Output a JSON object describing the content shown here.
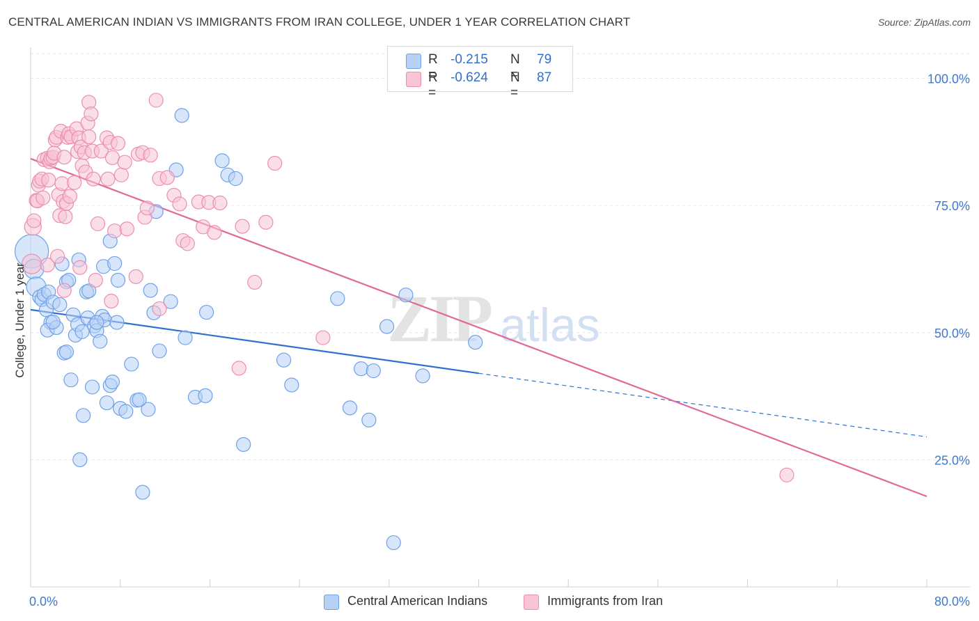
{
  "title": "CENTRAL AMERICAN INDIAN VS IMMIGRANTS FROM IRAN COLLEGE, UNDER 1 YEAR CORRELATION CHART",
  "source": "Source: ZipAtlas.com",
  "watermark": {
    "zip": "ZIP",
    "atlas": "atlas"
  },
  "legend": {
    "r_label": "R =",
    "n_label": "N =",
    "series": [
      {
        "r": "-0.215",
        "n": "79"
      },
      {
        "r": "-0.624",
        "n": "87"
      }
    ]
  },
  "chart_data": {
    "type": "scatter",
    "title": "CENTRAL AMERICAN INDIAN VS IMMIGRANTS FROM IRAN COLLEGE, UNDER 1 YEAR CORRELATION CHART",
    "xlabel": "",
    "ylabel": "College, Under 1 year",
    "xlim": [
      0,
      80
    ],
    "ylim": [
      0,
      105
    ],
    "x_tick_labels": [
      "0.0%",
      "80.0%"
    ],
    "y_ticks": [
      25,
      50,
      75,
      100
    ],
    "y_tick_labels": [
      "25.0%",
      "50.0%",
      "75.0%",
      "100.0%"
    ],
    "grid": true,
    "legend_position": "top-center",
    "series": [
      {
        "name": "Central American Indians",
        "color": "#6fa0e8",
        "fill": "#b7d1f5",
        "line_color": "#2f6fd0",
        "r": -0.215,
        "n": 79,
        "trend": {
          "x0": 0,
          "y0": 54.5,
          "x1": 40,
          "y1": 42.0,
          "dashed_to_x": 80,
          "dashed_to_y": 29.5
        },
        "points": [
          [
            0.1,
            66,
            24
          ],
          [
            0.3,
            62.5,
            14
          ],
          [
            0.5,
            59,
            14
          ],
          [
            0.8,
            57,
            10
          ],
          [
            1.0,
            56.5,
            10
          ],
          [
            1.2,
            57.5,
            10
          ],
          [
            1.4,
            54.5,
            10
          ],
          [
            1.6,
            58,
            10
          ],
          [
            1.8,
            52,
            10
          ],
          [
            2.0,
            56,
            10
          ],
          [
            1.5,
            50.5,
            10
          ],
          [
            2.3,
            51,
            10
          ],
          [
            2.6,
            55.5,
            10
          ],
          [
            2.8,
            63.5,
            10
          ],
          [
            3.0,
            46,
            10
          ],
          [
            3.2,
            60,
            10
          ],
          [
            3.4,
            60.3,
            10
          ],
          [
            3.2,
            46.2,
            10
          ],
          [
            3.6,
            40.7,
            10
          ],
          [
            3.8,
            53.5,
            10
          ],
          [
            4.0,
            49.5,
            10
          ],
          [
            4.2,
            51.6,
            10
          ],
          [
            4.3,
            64.3,
            10
          ],
          [
            4.6,
            50.2,
            10
          ],
          [
            5.0,
            58,
            10
          ],
          [
            5.1,
            52.9,
            10
          ],
          [
            5.2,
            58.2,
            10
          ],
          [
            5.5,
            39.3,
            10
          ],
          [
            5.7,
            51.3,
            10
          ],
          [
            5.9,
            50.4,
            10
          ],
          [
            6.2,
            48.3,
            10
          ],
          [
            6.4,
            53.2,
            10
          ],
          [
            6.5,
            63,
            10
          ],
          [
            6.6,
            52.5,
            10
          ],
          [
            6.8,
            36.2,
            10
          ],
          [
            7.1,
            39.6,
            10
          ],
          [
            7.3,
            40.3,
            10
          ],
          [
            7.5,
            63.6,
            10
          ],
          [
            7.7,
            52,
            10
          ],
          [
            7.8,
            60.3,
            10
          ],
          [
            7.1,
            68,
            10
          ],
          [
            8.0,
            35.1,
            10
          ],
          [
            8.5,
            34.5,
            10
          ],
          [
            9.0,
            43.8,
            10
          ],
          [
            9.5,
            36.7,
            10
          ],
          [
            10.0,
            18.6,
            10
          ],
          [
            10.5,
            34.9,
            10
          ],
          [
            10.7,
            58.3,
            10
          ],
          [
            11.0,
            53.9,
            10
          ],
          [
            11.5,
            46.4,
            10
          ],
          [
            12.5,
            56.1,
            10
          ],
          [
            13.0,
            82,
            10
          ],
          [
            13.5,
            92.7,
            10
          ],
          [
            13.8,
            49,
            10
          ],
          [
            14.7,
            37.3,
            10
          ],
          [
            15.6,
            37.6,
            10
          ],
          [
            15.7,
            54,
            10
          ],
          [
            17.1,
            83.8,
            10
          ],
          [
            17.6,
            81,
            10
          ],
          [
            18.3,
            80.3,
            10
          ],
          [
            19.0,
            28,
            10
          ],
          [
            22.6,
            44.6,
            10
          ],
          [
            23.3,
            39.7,
            10
          ],
          [
            27.4,
            56.7,
            10
          ],
          [
            28.5,
            35.2,
            10
          ],
          [
            29.5,
            42.9,
            10
          ],
          [
            30.2,
            32.8,
            10
          ],
          [
            30.6,
            42.5,
            10
          ],
          [
            31.8,
            51.2,
            10
          ],
          [
            33.5,
            57.4,
            10
          ],
          [
            35.0,
            41.5,
            10
          ],
          [
            39.7,
            48.1,
            10
          ],
          [
            32.4,
            8.7,
            10
          ],
          [
            4.4,
            25,
            10
          ],
          [
            5.9,
            52,
            10
          ],
          [
            11.2,
            73.8,
            10
          ],
          [
            2.0,
            52.1,
            10
          ],
          [
            4.7,
            33.7,
            10
          ],
          [
            9.7,
            36.8,
            10
          ]
        ]
      },
      {
        "name": "Immigrants from Iran",
        "color": "#ec8db0",
        "fill": "#f8c4d6",
        "line_color": "#e0689a",
        "r": -0.624,
        "n": 87,
        "trend": {
          "x0": 0,
          "y0": 84.2,
          "x1": 80,
          "y1": 17.8
        },
        "points": [
          [
            0.1,
            63.5,
            14
          ],
          [
            0.2,
            70.8,
            12
          ],
          [
            0.3,
            72,
            10
          ],
          [
            0.5,
            76,
            10
          ],
          [
            0.6,
            75.9,
            10
          ],
          [
            0.7,
            79,
            10
          ],
          [
            0.8,
            79.8,
            10
          ],
          [
            1.0,
            80.2,
            10
          ],
          [
            1.1,
            76.5,
            10
          ],
          [
            1.2,
            84,
            10
          ],
          [
            1.5,
            84.3,
            10
          ],
          [
            1.6,
            80,
            10
          ],
          [
            1.7,
            83.6,
            10
          ],
          [
            1.8,
            84.3,
            10
          ],
          [
            2.0,
            84.5,
            10
          ],
          [
            2.1,
            85.3,
            10
          ],
          [
            2.2,
            87.9,
            10
          ],
          [
            2.3,
            88.4,
            10
          ],
          [
            2.5,
            77.1,
            10
          ],
          [
            2.6,
            73,
            10
          ],
          [
            2.7,
            89.6,
            10
          ],
          [
            2.8,
            79.3,
            10
          ],
          [
            2.9,
            75.8,
            10
          ],
          [
            3.0,
            84.5,
            10
          ],
          [
            3.1,
            72.8,
            10
          ],
          [
            3.2,
            75.4,
            10
          ],
          [
            3.3,
            88.4,
            10
          ],
          [
            3.4,
            89.1,
            10
          ],
          [
            3.5,
            76.8,
            10
          ],
          [
            3.6,
            88.5,
            10
          ],
          [
            3.9,
            79.5,
            10
          ],
          [
            4.1,
            90.1,
            10
          ],
          [
            4.2,
            85.6,
            10
          ],
          [
            4.3,
            88.3,
            10
          ],
          [
            4.5,
            86.5,
            10
          ],
          [
            4.6,
            82.8,
            10
          ],
          [
            4.8,
            85.4,
            10
          ],
          [
            4.9,
            81.6,
            10
          ],
          [
            5.1,
            91.2,
            10
          ],
          [
            5.2,
            88.5,
            10
          ],
          [
            5.2,
            95.3,
            10
          ],
          [
            5.4,
            93,
            10
          ],
          [
            5.5,
            85.7,
            10
          ],
          [
            5.6,
            80.2,
            10
          ],
          [
            5.8,
            60.3,
            10
          ],
          [
            6.3,
            85.7,
            10
          ],
          [
            6.8,
            88.3,
            10
          ],
          [
            6.9,
            80.2,
            10
          ],
          [
            7.1,
            87.4,
            10
          ],
          [
            7.3,
            84.4,
            10
          ],
          [
            7.5,
            70,
            10
          ],
          [
            7.8,
            87.2,
            10
          ],
          [
            8.1,
            81,
            10
          ],
          [
            8.4,
            83.5,
            10
          ],
          [
            9.4,
            61,
            10
          ],
          [
            9.6,
            85.1,
            10
          ],
          [
            10.0,
            85.4,
            10
          ],
          [
            10.2,
            72.7,
            10
          ],
          [
            10.4,
            74.5,
            10
          ],
          [
            10.7,
            84.9,
            10
          ],
          [
            11.2,
            95.7,
            10
          ],
          [
            11.5,
            80.3,
            10
          ],
          [
            12.2,
            80.5,
            10
          ],
          [
            12.8,
            77,
            10
          ],
          [
            13.3,
            75.3,
            10
          ],
          [
            13.6,
            68.1,
            10
          ],
          [
            14.0,
            67.5,
            10
          ],
          [
            15.0,
            75.7,
            10
          ],
          [
            15.4,
            70.8,
            10
          ],
          [
            15.9,
            75.6,
            10
          ],
          [
            16.4,
            69.7,
            10
          ],
          [
            16.9,
            75.5,
            10
          ],
          [
            18.6,
            43,
            10
          ],
          [
            18.9,
            70.9,
            10
          ],
          [
            20.0,
            59.9,
            10
          ],
          [
            21.0,
            71.7,
            10
          ],
          [
            21.8,
            83.3,
            10
          ],
          [
            26.1,
            49,
            10
          ],
          [
            67.5,
            22,
            10
          ],
          [
            1.5,
            63.3,
            10
          ],
          [
            3.0,
            58.3,
            10
          ],
          [
            4.4,
            62.8,
            10
          ],
          [
            7.2,
            56.2,
            10
          ],
          [
            11.5,
            54.7,
            10
          ],
          [
            8.6,
            70.4,
            10
          ],
          [
            2.4,
            65,
            10
          ],
          [
            6.0,
            71.4,
            10
          ]
        ]
      }
    ]
  }
}
